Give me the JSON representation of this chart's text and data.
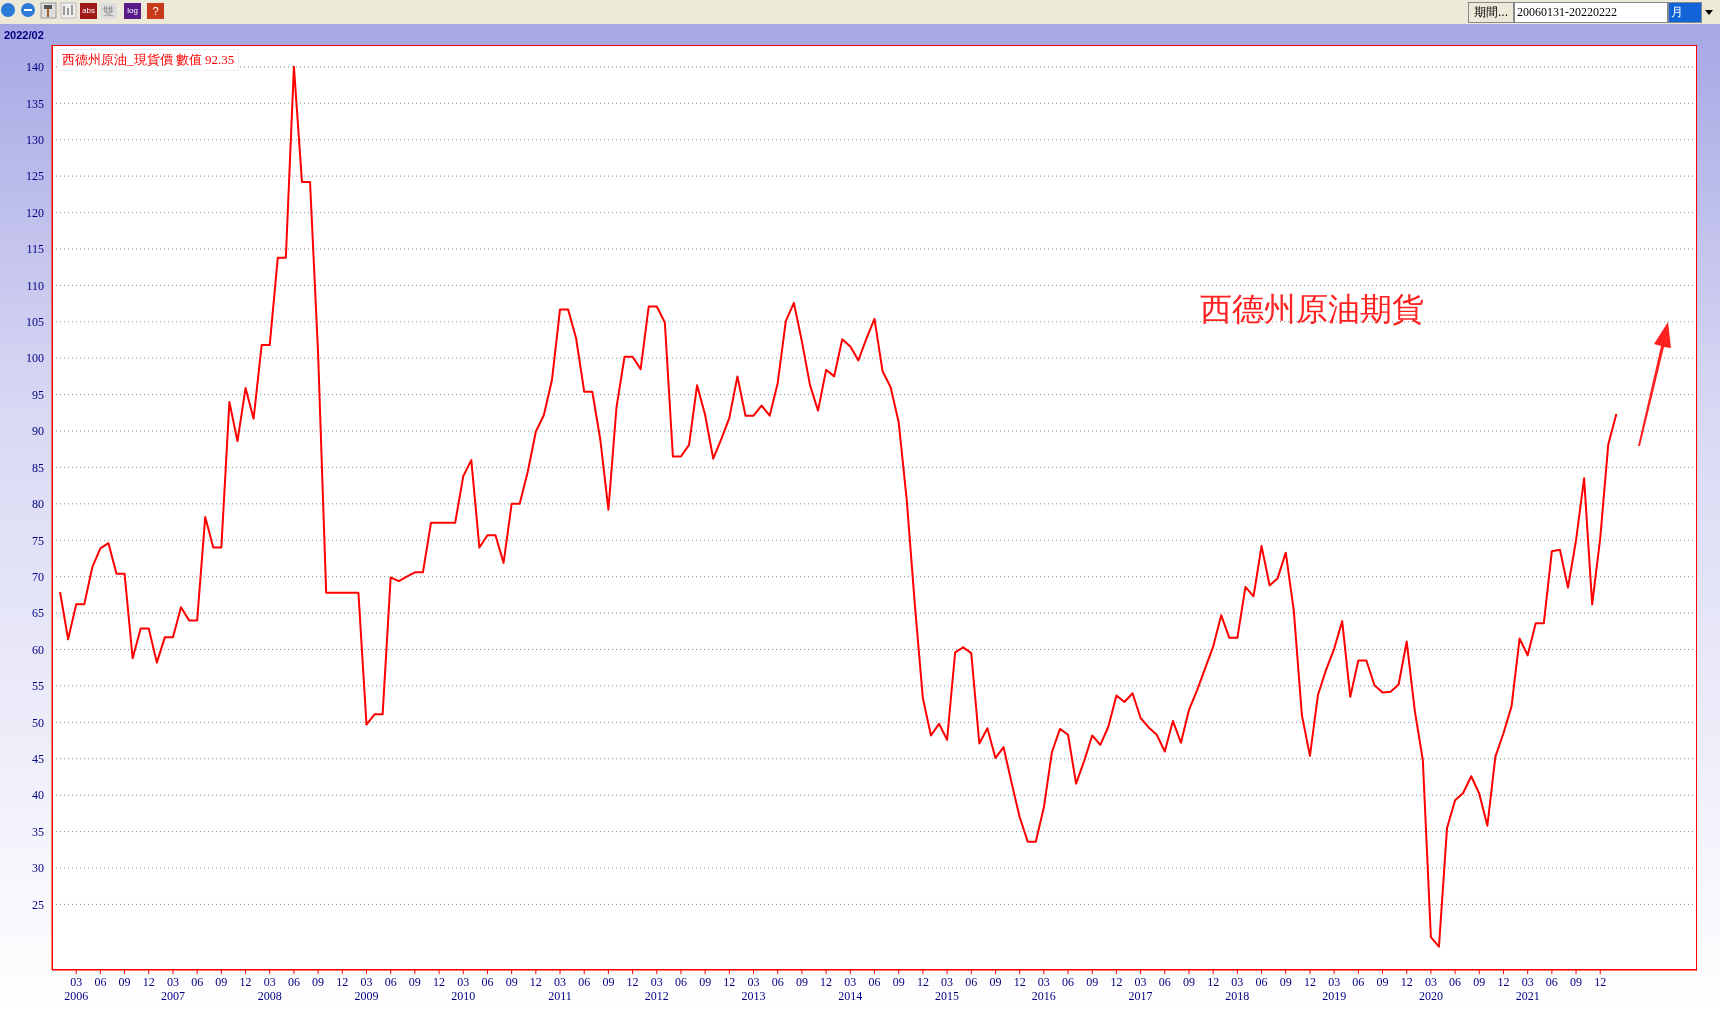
{
  "chart_data": {
    "type": "line",
    "annotations": [
      "2022/02",
      "數值 92.35",
      "西德州原油期貨",
      "期間...",
      "20060131-20220222",
      "月",
      "abs",
      "雙",
      "log",
      "?"
    ],
    "x": [
      "2006-01",
      "2006-02",
      "2006-03",
      "2006-04",
      "2006-05",
      "2006-06",
      "2006-07",
      "2006-08",
      "2006-09",
      "2006-10",
      "2006-11",
      "2006-12",
      "2007-01",
      "2007-02",
      "2007-03",
      "2007-04",
      "2007-05",
      "2007-06",
      "2007-07",
      "2007-08",
      "2007-09",
      "2007-10",
      "2007-11",
      "2007-12",
      "2008-01",
      "2008-02",
      "2008-03",
      "2008-04",
      "2008-05",
      "2008-06",
      "2008-07",
      "2008-08",
      "2008-09",
      "2008-10",
      "2008-11",
      "2008-12",
      "2009-01",
      "2009-02",
      "2009-03",
      "2009-04",
      "2009-05",
      "2009-06",
      "2009-07",
      "2009-08",
      "2009-09",
      "2009-10",
      "2009-11",
      "2009-12",
      "2010-01",
      "2010-02",
      "2010-03",
      "2010-04",
      "2010-05",
      "2010-06",
      "2010-07",
      "2010-08",
      "2010-09",
      "2010-10",
      "2010-11",
      "2010-12",
      "2011-01",
      "2011-02",
      "2011-03",
      "2011-04",
      "2011-05",
      "2011-06",
      "2011-07",
      "2011-08",
      "2011-09",
      "2011-10",
      "2011-11",
      "2011-12",
      "2012-01",
      "2012-02",
      "2012-03",
      "2012-04",
      "2012-05",
      "2012-06",
      "2012-07",
      "2012-08",
      "2012-09",
      "2012-10",
      "2012-11",
      "2012-12",
      "2013-01",
      "2013-02",
      "2013-03",
      "2013-04",
      "2013-05",
      "2013-06",
      "2013-07",
      "2013-08",
      "2013-09",
      "2013-10",
      "2013-11",
      "2013-12",
      "2014-01",
      "2014-02",
      "2014-03",
      "2014-04",
      "2014-05",
      "2014-06",
      "2014-07",
      "2014-08",
      "2014-09",
      "2014-10",
      "2014-11",
      "2014-12",
      "2015-01",
      "2015-02",
      "2015-03",
      "2015-04",
      "2015-05",
      "2015-06",
      "2015-07",
      "2015-08",
      "2015-09",
      "2015-10",
      "2015-11",
      "2015-12",
      "2016-01",
      "2016-02",
      "2016-03",
      "2016-04",
      "2016-05",
      "2016-06",
      "2016-07",
      "2016-08",
      "2016-09",
      "2016-10",
      "2016-11",
      "2016-12",
      "2017-01",
      "2017-02",
      "2017-03",
      "2017-04",
      "2017-05",
      "2017-06",
      "2017-07",
      "2017-08",
      "2017-09",
      "2017-10",
      "2017-11",
      "2017-12",
      "2018-01",
      "2018-02",
      "2018-03",
      "2018-04",
      "2018-05",
      "2018-06",
      "2018-07",
      "2018-08",
      "2018-09",
      "2018-10",
      "2018-11",
      "2018-12",
      "2019-01",
      "2019-02",
      "2019-03",
      "2019-04",
      "2019-05",
      "2019-06",
      "2019-07",
      "2019-08",
      "2019-09",
      "2019-10",
      "2019-11",
      "2019-12",
      "2020-01",
      "2020-02",
      "2020-03",
      "2020-04",
      "2020-05",
      "2020-06",
      "2020-07",
      "2020-08",
      "2020-09",
      "2020-10",
      "2020-11",
      "2020-12",
      "2021-01",
      "2021-02",
      "2021-03",
      "2021-04",
      "2021-05",
      "2021-06",
      "2021-07",
      "2021-08",
      "2021-09",
      "2021-10",
      "2021-11",
      "2021-12",
      "2022-01",
      "2022-02"
    ],
    "series": [
      {
        "name": "西德州原油_現貨價",
        "color": "#ff0000",
        "values": [
          67.9,
          61.4,
          66.2,
          66.2,
          71.3,
          73.9,
          74.6,
          70.4,
          70.4,
          58.8,
          62.9,
          62.9,
          58.2,
          61.7,
          61.7,
          65.8,
          64.0,
          64.0,
          78.2,
          74.0,
          74.0,
          94.0,
          88.6,
          95.9,
          91.7,
          101.8,
          101.8,
          113.8,
          113.8,
          140.0,
          124.2,
          124.2,
          100.6,
          67.8,
          67.8,
          67.8,
          67.8,
          67.8,
          49.7,
          51.1,
          51.1,
          69.9,
          69.4,
          70.0,
          70.6,
          70.6,
          77.4,
          77.4,
          77.4,
          77.4,
          83.8,
          86.0,
          74.0,
          75.7,
          75.7,
          71.9,
          80.0,
          80.0,
          84.4,
          89.9,
          92.2,
          97.0,
          106.7,
          106.7,
          102.7,
          95.4,
          95.4,
          88.8,
          79.2,
          93.2,
          100.2,
          100.2,
          98.5,
          107.1,
          107.1,
          104.9,
          86.5,
          86.5,
          88.1,
          96.3,
          92.2,
          86.2,
          88.9,
          91.8,
          97.5,
          92.1,
          92.1,
          93.5,
          92.1,
          96.6,
          105.1,
          107.6,
          102.3,
          96.3,
          92.8,
          98.4,
          97.5,
          102.6,
          101.6,
          99.7,
          102.7,
          105.4,
          98.2,
          96.0,
          91.2,
          80.5,
          66.2,
          53.3,
          48.2,
          49.8,
          47.6,
          59.6,
          60.3,
          59.5,
          47.1,
          49.2,
          45.1,
          46.6,
          41.7,
          37.0,
          33.6,
          33.6,
          38.3,
          45.9,
          49.1,
          48.3,
          41.6,
          44.7,
          48.2,
          46.9,
          49.4,
          53.7,
          52.8,
          54.0,
          50.6,
          49.3,
          48.3,
          46.0,
          50.2,
          47.2,
          51.7,
          54.4,
          57.4,
          60.4,
          64.7,
          61.6,
          61.6,
          68.6,
          67.3,
          74.2,
          68.8,
          69.8,
          73.3,
          65.3,
          51.0,
          45.4,
          53.8,
          57.2,
          60.1,
          63.9,
          53.5,
          58.5,
          58.5,
          55.1,
          54.1,
          54.2,
          55.2,
          61.1,
          51.6,
          44.8,
          20.5,
          19.2,
          35.5,
          39.3,
          40.3,
          42.6,
          40.2,
          35.8,
          45.3,
          48.5,
          52.2,
          61.5,
          59.2,
          63.6,
          63.6,
          73.5,
          73.7,
          68.5,
          75.0,
          83.5,
          66.2,
          75.3,
          88.2,
          92.35
        ]
      }
    ],
    "xlim": [
      "2005-12",
      "2022-12"
    ],
    "xticks": [
      {
        "value": "2006-03",
        "label": "03\n2006"
      },
      {
        "value": "2006-06",
        "label": "06"
      },
      {
        "value": "2006-09",
        "label": "09"
      },
      {
        "value": "2006-12",
        "label": "12"
      },
      {
        "value": "2007-03",
        "label": "03\n2007"
      },
      {
        "value": "2007-06",
        "label": "06"
      },
      {
        "value": "2007-09",
        "label": "09"
      },
      {
        "value": "2007-12",
        "label": "12"
      },
      {
        "value": "2008-03",
        "label": "03\n2008"
      },
      {
        "value": "2008-06",
        "label": "06"
      },
      {
        "value": "2008-09",
        "label": "09"
      },
      {
        "value": "2008-12",
        "label": "12"
      },
      {
        "value": "2009-03",
        "label": "03\n2009"
      },
      {
        "value": "2009-06",
        "label": "06"
      },
      {
        "value": "2009-09",
        "label": "09"
      },
      {
        "value": "2009-12",
        "label": "12"
      },
      {
        "value": "2010-03",
        "label": "03\n2010"
      },
      {
        "value": "2010-06",
        "label": "06"
      },
      {
        "value": "2010-09",
        "label": "09"
      },
      {
        "value": "2010-12",
        "label": "12"
      },
      {
        "value": "2011-03",
        "label": "03\n2011"
      },
      {
        "value": "2011-06",
        "label": "06"
      },
      {
        "value": "2011-09",
        "label": "09"
      },
      {
        "value": "2011-12",
        "label": "12"
      },
      {
        "value": "2012-03",
        "label": "03\n2012"
      },
      {
        "value": "2012-06",
        "label": "06"
      },
      {
        "value": "2012-09",
        "label": "09"
      },
      {
        "value": "2012-12",
        "label": "12"
      },
      {
        "value": "2013-03",
        "label": "03\n2013"
      },
      {
        "value": "2013-06",
        "label": "06"
      },
      {
        "value": "2013-09",
        "label": "09"
      },
      {
        "value": "2013-12",
        "label": "12"
      },
      {
        "value": "2014-03",
        "label": "03\n2014"
      },
      {
        "value": "2014-06",
        "label": "06"
      },
      {
        "value": "2014-09",
        "label": "09"
      },
      {
        "value": "2014-12",
        "label": "12"
      },
      {
        "value": "2015-03",
        "label": "03\n2015"
      },
      {
        "value": "2015-06",
        "label": "06"
      },
      {
        "value": "2015-09",
        "label": "09"
      },
      {
        "value": "2015-12",
        "label": "12"
      },
      {
        "value": "2016-03",
        "label": "03\n2016"
      },
      {
        "value": "2016-06",
        "label": "06"
      },
      {
        "value": "2016-09",
        "label": "09"
      },
      {
        "value": "2016-12",
        "label": "12"
      },
      {
        "value": "2017-03",
        "label": "03\n2017"
      },
      {
        "value": "2017-06",
        "label": "06"
      },
      {
        "value": "2017-09",
        "label": "09"
      },
      {
        "value": "2017-12",
        "label": "12"
      },
      {
        "value": "2018-03",
        "label": "03\n2018"
      },
      {
        "value": "2018-06",
        "label": "06"
      },
      {
        "value": "2018-09",
        "label": "09"
      },
      {
        "value": "2018-12",
        "label": "12"
      },
      {
        "value": "2019-03",
        "label": "03\n2019"
      },
      {
        "value": "2019-06",
        "label": "06"
      },
      {
        "value": "2019-09",
        "label": "09"
      },
      {
        "value": "2019-12",
        "label": "12"
      },
      {
        "value": "2020-03",
        "label": "03\n2020"
      },
      {
        "value": "2020-06",
        "label": "06"
      },
      {
        "value": "2020-09",
        "label": "09"
      },
      {
        "value": "2020-12",
        "label": "12"
      },
      {
        "value": "2021-03",
        "label": "03\n2021"
      },
      {
        "value": "2021-06",
        "label": "06"
      },
      {
        "value": "2021-09",
        "label": "09"
      },
      {
        "value": "2021-12",
        "label": "12"
      }
    ],
    "ylim": [
      16,
      143
    ],
    "yticks": [
      25,
      30,
      35,
      40,
      45,
      50,
      55,
      60,
      65,
      70,
      75,
      80,
      85,
      90,
      95,
      100,
      105,
      110,
      115,
      120,
      125,
      130,
      135,
      140
    ],
    "grid": "y",
    "legend": "top left",
    "marker": "none",
    "line_style": "solid"
  }
}
